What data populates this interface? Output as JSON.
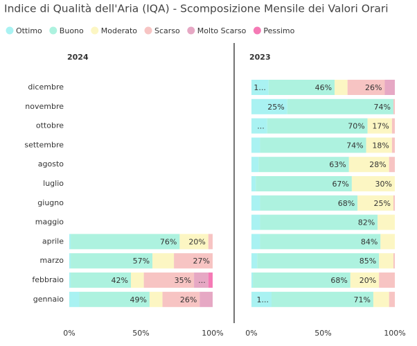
{
  "title": "Indice di Qualità dell'Aria (IQA) - Scomposizione Mensile dei Valori Orari",
  "chart_data": [
    {
      "type": "stacked_bar_100",
      "title": "2024",
      "categories": [
        "dicembre",
        "novembre",
        "ottobre",
        "settembre",
        "agosto",
        "luglio",
        "giugno",
        "maggio",
        "aprile",
        "marzo",
        "febbraio",
        "gennaio"
      ],
      "xlim": [
        0,
        100
      ],
      "xticks": [
        {
          "value": 0,
          "label": "0%"
        },
        {
          "value": 50,
          "label": "50%"
        },
        {
          "value": 100,
          "label": "100%"
        }
      ],
      "series": [
        {
          "name": "Ottimo",
          "color": "#a9f2f2",
          "values": [
            null,
            null,
            null,
            null,
            null,
            null,
            null,
            null,
            1,
            1,
            1,
            7
          ],
          "value_labels": [
            null,
            null,
            null,
            null,
            null,
            null,
            null,
            null,
            null,
            null,
            null,
            null
          ]
        },
        {
          "name": "Buono",
          "color": "#adf2df",
          "values": [
            null,
            null,
            null,
            null,
            null,
            null,
            null,
            null,
            76,
            57,
            42,
            49
          ],
          "value_labels": [
            null,
            null,
            null,
            null,
            null,
            null,
            null,
            null,
            "76%",
            "57%",
            "42%",
            "49%"
          ]
        },
        {
          "name": "Moderato",
          "color": "#fcf6c3",
          "values": [
            null,
            null,
            null,
            null,
            null,
            null,
            null,
            null,
            20,
            15,
            9,
            9
          ],
          "value_labels": [
            null,
            null,
            null,
            null,
            null,
            null,
            null,
            null,
            "20%",
            null,
            null,
            null
          ]
        },
        {
          "name": "Scarso",
          "color": "#f7c4c3",
          "values": [
            null,
            null,
            null,
            null,
            null,
            null,
            null,
            null,
            3,
            27,
            35,
            26
          ],
          "value_labels": [
            null,
            null,
            null,
            null,
            null,
            null,
            null,
            null,
            null,
            "27%",
            "35%",
            "26%"
          ]
        },
        {
          "name": "Molto Scarso",
          "color": "#e6a8c4",
          "values": [
            null,
            null,
            null,
            null,
            null,
            null,
            null,
            null,
            0,
            0,
            10,
            9
          ],
          "value_labels": [
            null,
            null,
            null,
            null,
            null,
            null,
            null,
            null,
            null,
            null,
            "...",
            null
          ]
        },
        {
          "name": "Pessimo",
          "color": "#f57ab5",
          "values": [
            null,
            null,
            null,
            null,
            null,
            null,
            null,
            null,
            0,
            0,
            3,
            0
          ],
          "value_labels": [
            null,
            null,
            null,
            null,
            null,
            null,
            null,
            null,
            null,
            null,
            null,
            null
          ]
        }
      ]
    },
    {
      "type": "stacked_bar_100",
      "title": "2023",
      "categories": [
        "dicembre",
        "novembre",
        "ottobre",
        "settembre",
        "agosto",
        "luglio",
        "giugno",
        "maggio",
        "aprile",
        "marzo",
        "febbraio",
        "gennaio"
      ],
      "xlim": [
        0,
        100
      ],
      "xticks": [
        {
          "value": 0,
          "label": "0%"
        },
        {
          "value": 50,
          "label": "50%"
        },
        {
          "value": 100,
          "label": "100%"
        }
      ],
      "series": [
        {
          "name": "Ottimo",
          "color": "#a9f2f2",
          "values": [
            12,
            25,
            11,
            6,
            5,
            3,
            6,
            6,
            6,
            4,
            1,
            14
          ],
          "value_labels": [
            "1...",
            "25%",
            "...",
            null,
            null,
            null,
            null,
            null,
            null,
            null,
            null,
            "1..."
          ]
        },
        {
          "name": "Buono",
          "color": "#adf2df",
          "values": [
            46,
            74,
            70,
            74,
            63,
            67,
            68,
            82,
            84,
            85,
            68,
            71
          ],
          "value_labels": [
            "46%",
            "74%",
            "70%",
            "74%",
            "63%",
            "67%",
            "68%",
            "82%",
            "84%",
            "85%",
            "68%",
            "71%"
          ]
        },
        {
          "name": "Moderato",
          "color": "#fcf6c3",
          "values": [
            9,
            0,
            17,
            18,
            28,
            30,
            25,
            12,
            10,
            10,
            20,
            11
          ],
          "value_labels": [
            null,
            null,
            "17%",
            "18%",
            "28%",
            "30%",
            "25%",
            null,
            null,
            null,
            "20%",
            null
          ]
        },
        {
          "name": "Scarso",
          "color": "#f7c4c3",
          "values": [
            26,
            1,
            2,
            2,
            4,
            0,
            1,
            0,
            0,
            1,
            11,
            4
          ],
          "value_labels": [
            "26%",
            null,
            null,
            null,
            null,
            null,
            null,
            null,
            null,
            null,
            null,
            null
          ]
        },
        {
          "name": "Molto Scarso",
          "color": "#e6a8c4",
          "values": [
            7,
            0,
            0,
            0,
            0,
            0,
            0,
            0,
            0,
            0,
            0,
            0
          ],
          "value_labels": [
            null,
            null,
            null,
            null,
            null,
            null,
            null,
            null,
            null,
            null,
            null,
            null
          ]
        },
        {
          "name": "Pessimo",
          "color": "#f57ab5",
          "values": [
            0,
            0,
            0,
            0,
            0,
            0,
            0,
            0,
            0,
            0,
            0,
            0
          ],
          "value_labels": [
            null,
            null,
            null,
            null,
            null,
            null,
            null,
            null,
            null,
            null,
            null,
            null
          ]
        }
      ]
    }
  ]
}
